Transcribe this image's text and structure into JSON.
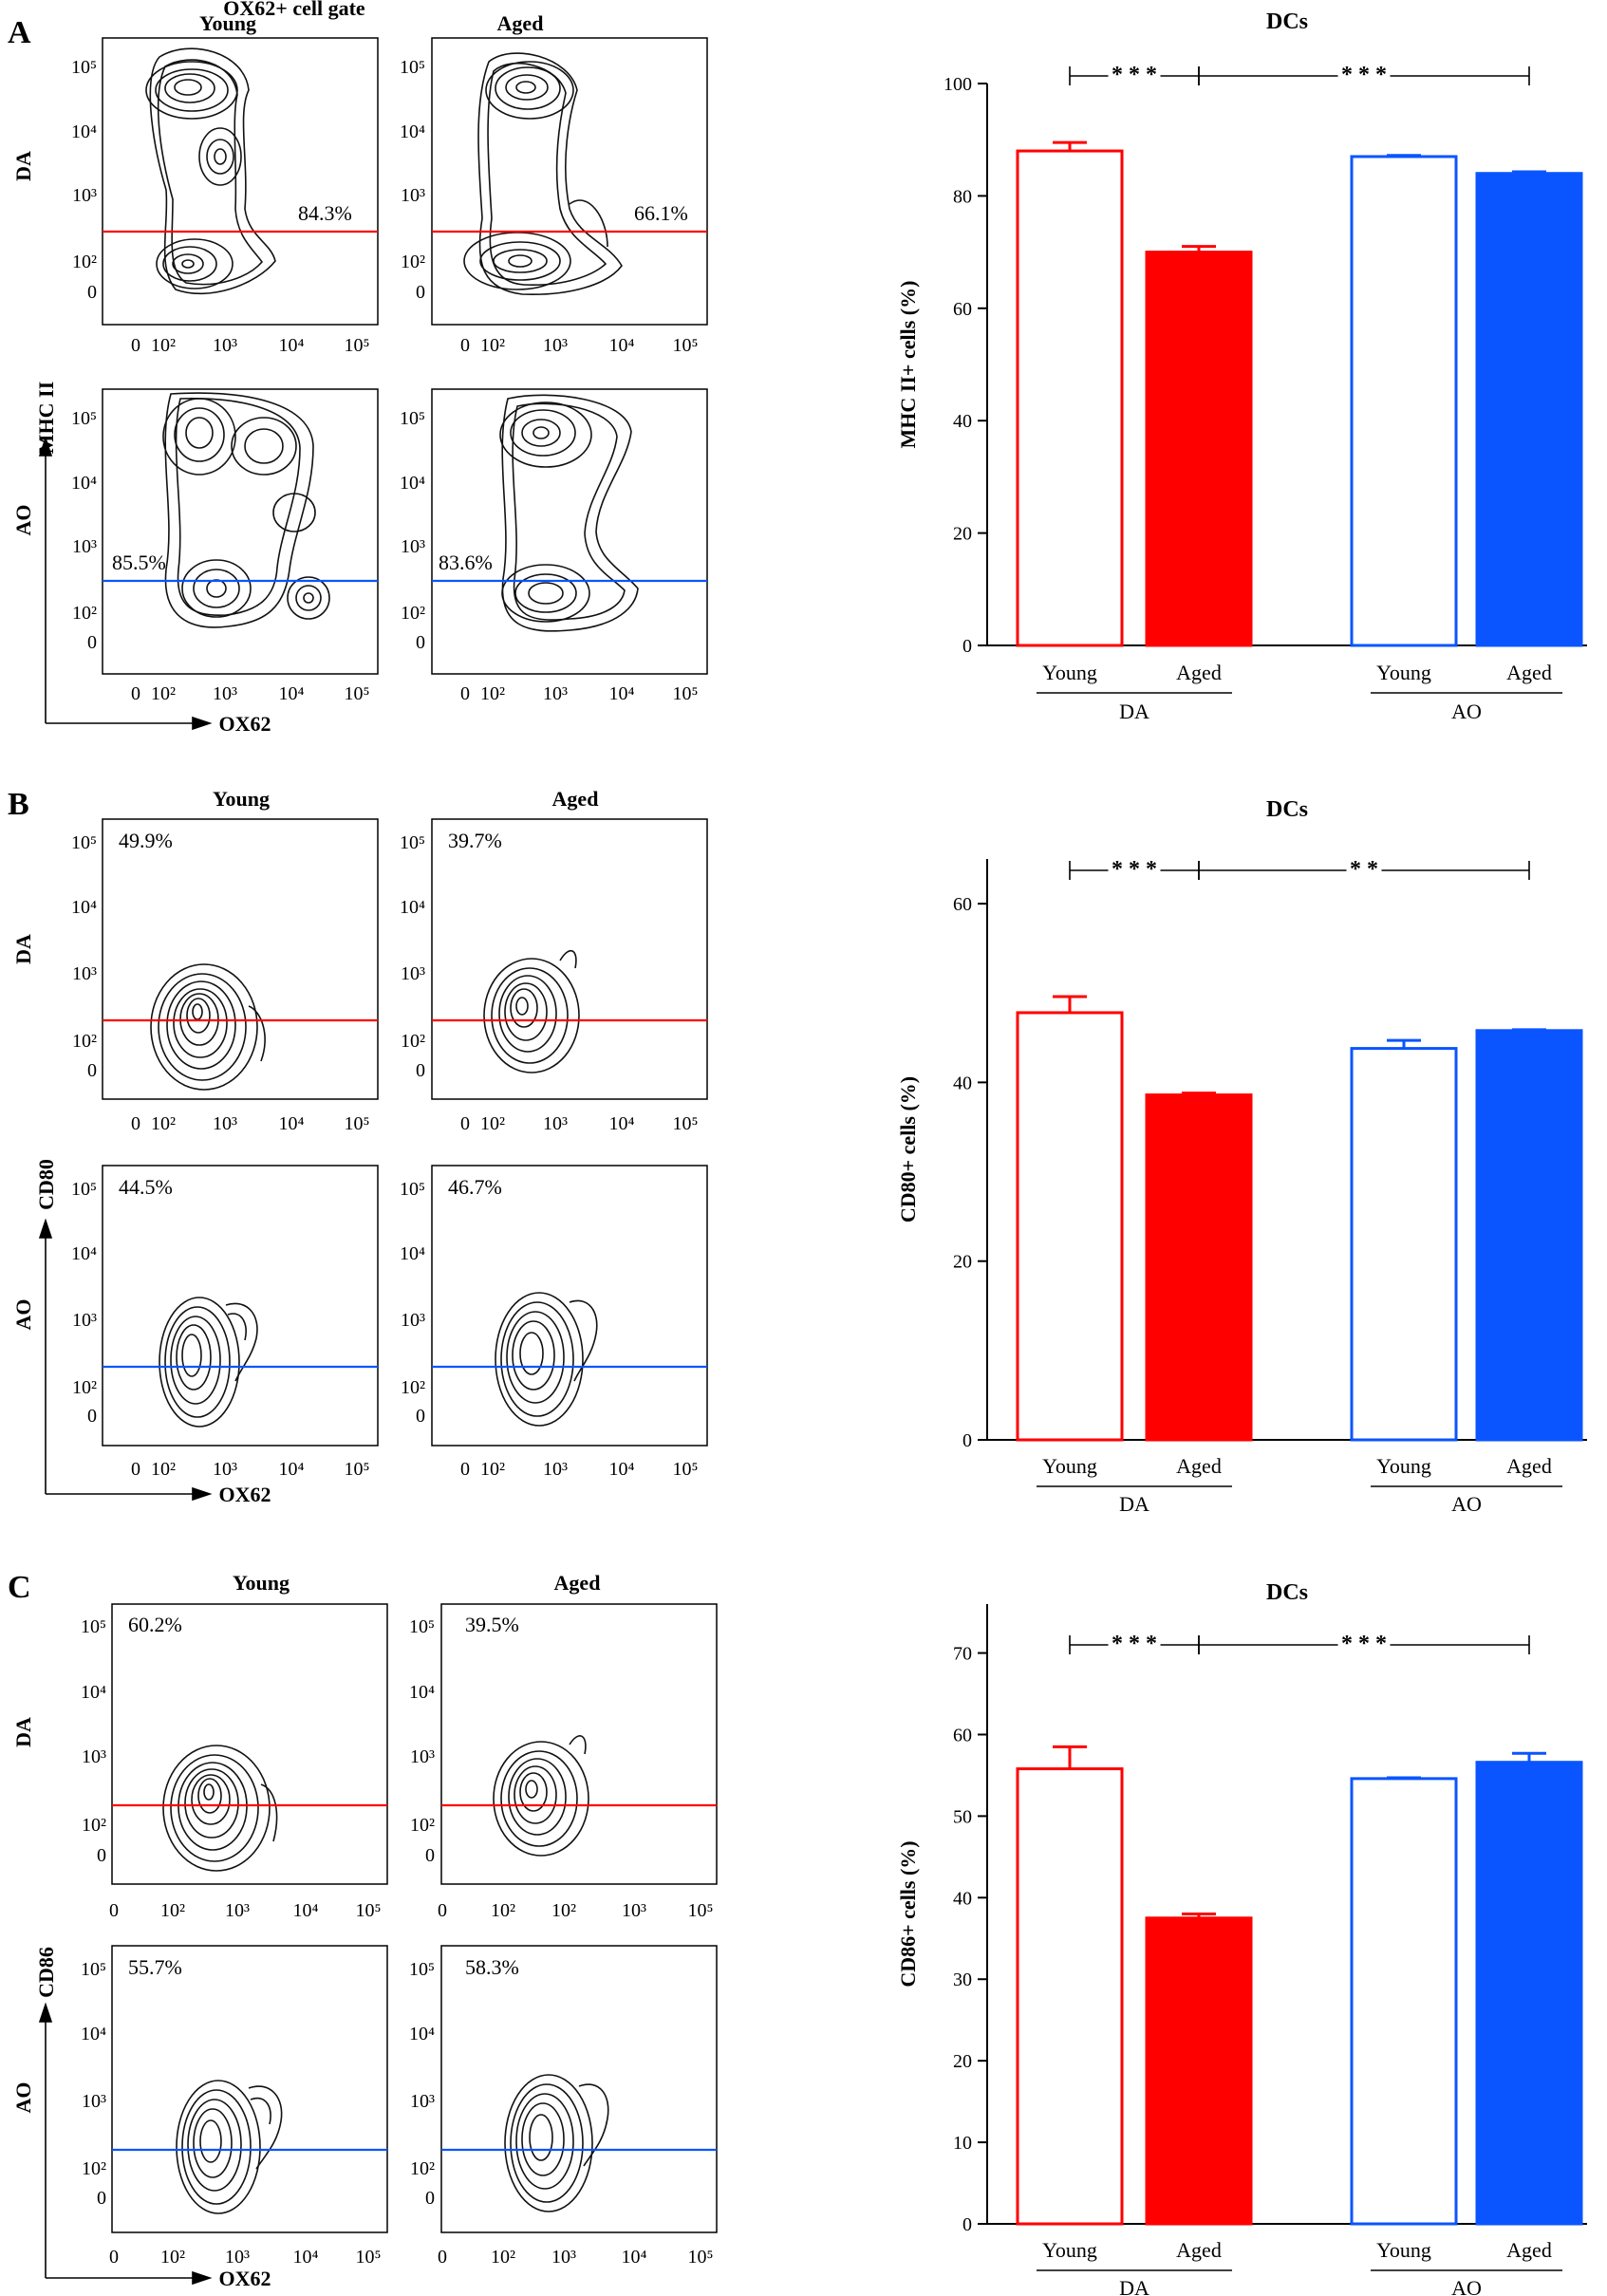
{
  "colors": {
    "da": "#ff0000",
    "ao": "#0a55ff",
    "contour": "#111111",
    "axis": "#000000"
  },
  "section_a": {
    "letter": "A",
    "gate_title": "OX62+ cell gate",
    "col_young": "Young",
    "col_aged": "Aged",
    "row_da": "DA",
    "row_ao": "AO",
    "y_axis_marker": "MHC II",
    "x_axis_marker": "OX62",
    "x_ticks": [
      "0",
      "10²",
      "10³",
      "10⁴",
      "10⁵"
    ],
    "y_ticks": [
      "10⁵",
      "10⁴",
      "10³",
      "10²",
      "0"
    ],
    "pct": {
      "da_young": "84.3%",
      "da_aged": "66.1%",
      "ao_young": "85.5%",
      "ao_aged": "83.6%"
    }
  },
  "section_b": {
    "letter": "B",
    "col_young": "Young",
    "col_aged": "Aged",
    "row_da": "DA",
    "row_ao": "AO",
    "y_axis_marker": "CD80",
    "x_axis_marker": "OX62",
    "x_ticks": [
      "0",
      "10²",
      "10³",
      "10⁴",
      "10⁵"
    ],
    "y_ticks": [
      "10⁵",
      "10⁴",
      "10³",
      "10²",
      "0"
    ],
    "pct": {
      "da_young": "49.9%",
      "da_aged": "39.7%",
      "ao_young": "44.5%",
      "ao_aged": "46.7%"
    }
  },
  "section_c": {
    "letter": "C",
    "col_young": "Young",
    "col_aged": "Aged",
    "row_da": "DA",
    "row_ao": "AO",
    "y_axis_marker": "CD86",
    "x_axis_marker": "OX62",
    "x_ticks_young": [
      "0",
      "10²",
      "10³",
      "10⁴",
      "10⁵"
    ],
    "x_ticks_aged_da": [
      "0",
      "10²",
      "10²",
      "10³",
      "10⁵"
    ],
    "x_ticks_aged_ao": [
      "0",
      "10²",
      "10³",
      "10⁴",
      "10⁵"
    ],
    "y_ticks": [
      "10⁵",
      "10⁴",
      "10³",
      "10²",
      "0"
    ],
    "pct": {
      "da_young": "60.2%",
      "da_aged": "39.5%",
      "ao_young": "55.7%",
      "ao_aged": "58.3%"
    }
  },
  "chart_data": [
    {
      "type": "bar",
      "title": "DCs",
      "ylabel": "MHC II+ cells (%)",
      "ylim": [
        0,
        100
      ],
      "yticks": [
        0,
        20,
        40,
        60,
        80,
        100
      ],
      "categories": [
        "Young",
        "Aged",
        "Young",
        "Aged"
      ],
      "groups": [
        "DA",
        "AO"
      ],
      "values": [
        88,
        70,
        87,
        84
      ],
      "errors": [
        1.5,
        1,
        0.2,
        0.3
      ],
      "styles": [
        "da-open",
        "da-filled",
        "ao-open",
        "ao-filled"
      ],
      "significance": [
        {
          "from": 0,
          "to": 1,
          "label": "* * *"
        },
        {
          "from": 1,
          "to": 3,
          "label": "* * *"
        }
      ]
    },
    {
      "type": "bar",
      "title": "DCs",
      "ylabel": "CD80+ cells (%)",
      "ylim": [
        0,
        65
      ],
      "yticks": [
        0,
        20,
        40,
        60
      ],
      "categories": [
        "Young",
        "Aged",
        "Young",
        "Aged"
      ],
      "groups": [
        "DA",
        "AO"
      ],
      "values": [
        47.8,
        38.6,
        43.8,
        45.8
      ],
      "errors": [
        1.8,
        0.2,
        0.9,
        0.1
      ],
      "styles": [
        "da-open",
        "da-filled",
        "ao-open",
        "ao-filled"
      ],
      "significance": [
        {
          "from": 0,
          "to": 1,
          "label": "* * *"
        },
        {
          "from": 1,
          "to": 3,
          "label": "* *"
        }
      ]
    },
    {
      "type": "bar",
      "title": "DCs",
      "ylabel": "CD86+ cells (%)",
      "ylim": [
        0,
        76
      ],
      "yticks": [
        0,
        10,
        20,
        30,
        40,
        50,
        60,
        70
      ],
      "categories": [
        "Young",
        "Aged",
        "Young",
        "Aged"
      ],
      "groups": [
        "DA",
        "AO"
      ],
      "values": [
        55.8,
        37.5,
        54.6,
        56.6
      ],
      "errors": [
        2.7,
        0.5,
        0.1,
        1.1
      ],
      "styles": [
        "da-open",
        "da-filled",
        "ao-open",
        "ao-filled"
      ],
      "significance": [
        {
          "from": 0,
          "to": 1,
          "label": "* * *"
        },
        {
          "from": 1,
          "to": 3,
          "label": "* * *"
        }
      ]
    }
  ]
}
